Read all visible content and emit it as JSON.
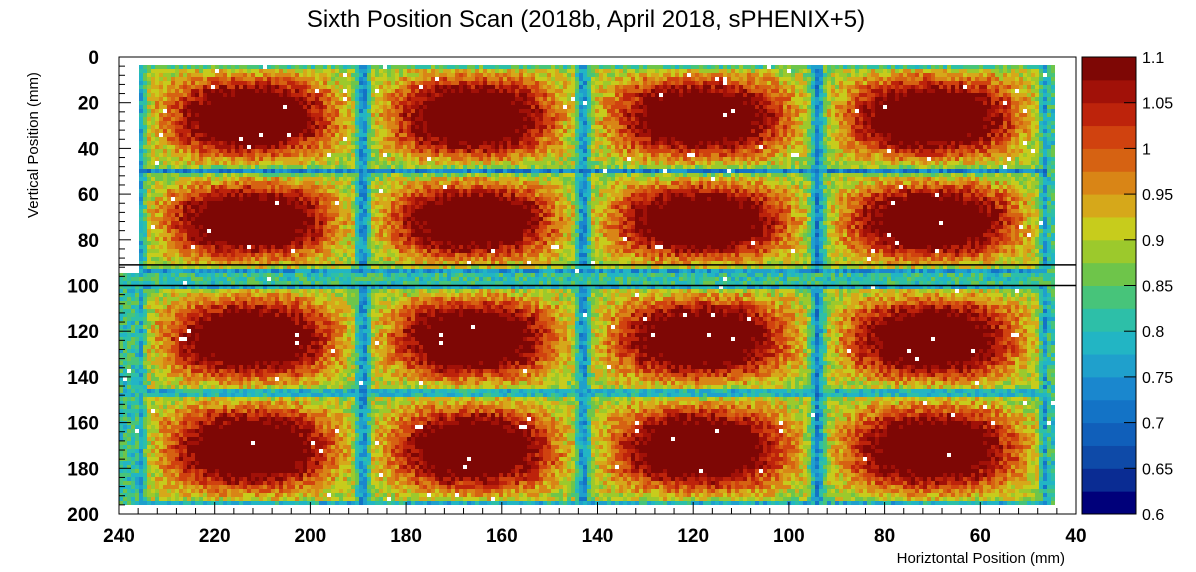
{
  "chart_data": {
    "type": "heatmap",
    "title": "Sixth Position Scan (2018b, April 2018, sPHENIX+5)",
    "xlabel": "Horiztontal Position (mm)",
    "ylabel": "Vertical Position (mm)",
    "xlim": [
      240,
      40
    ],
    "ylim": [
      0,
      200
    ],
    "x_axis_reversed": true,
    "y_axis_inverted": true,
    "x_ticks": [
      "240",
      "220",
      "200",
      "180",
      "160",
      "140",
      "120",
      "100",
      "80",
      "60",
      "40"
    ],
    "y_ticks": [
      "0",
      "20",
      "40",
      "60",
      "80",
      "100",
      "120",
      "140",
      "160",
      "180",
      "200"
    ],
    "colorbar": {
      "min": 0.6,
      "max": 1.1,
      "levels": 20,
      "labels": [
        "1.1",
        "1.05",
        "1",
        "0.95",
        "0.9",
        "0.85",
        "0.8",
        "0.75",
        "0.7",
        "0.65",
        "0.6"
      ],
      "colors": [
        "#00007a",
        "#0a2c93",
        "#0e4aa8",
        "#105fba",
        "#1373c6",
        "#1a87ce",
        "#1fa0cc",
        "#22b5c4",
        "#2dbfa8",
        "#47c47a",
        "#6ec54a",
        "#9cc92c",
        "#c7cc1c",
        "#d6a81a",
        "#d98516",
        "#d66212",
        "#d0420f",
        "#bd230b",
        "#a11108",
        "#7e0705"
      ]
    },
    "blocks": {
      "columns_x_range": [
        [
          236,
          189
        ],
        [
          189,
          143
        ],
        [
          143,
          94
        ],
        [
          94,
          46
        ]
      ],
      "rows_y_range_upper": [
        [
          3,
          50
        ],
        [
          50,
          94
        ]
      ],
      "rows_y_range_lower": [
        [
          100,
          147
        ],
        [
          147,
          196
        ]
      ],
      "lobes_per_block": 4,
      "peak_value": 1.1,
      "boundary_value": 0.88,
      "edge_value": 0.72
    },
    "horizontal_lines_y": [
      91,
      100
    ],
    "grid": false,
    "legend": "none"
  }
}
